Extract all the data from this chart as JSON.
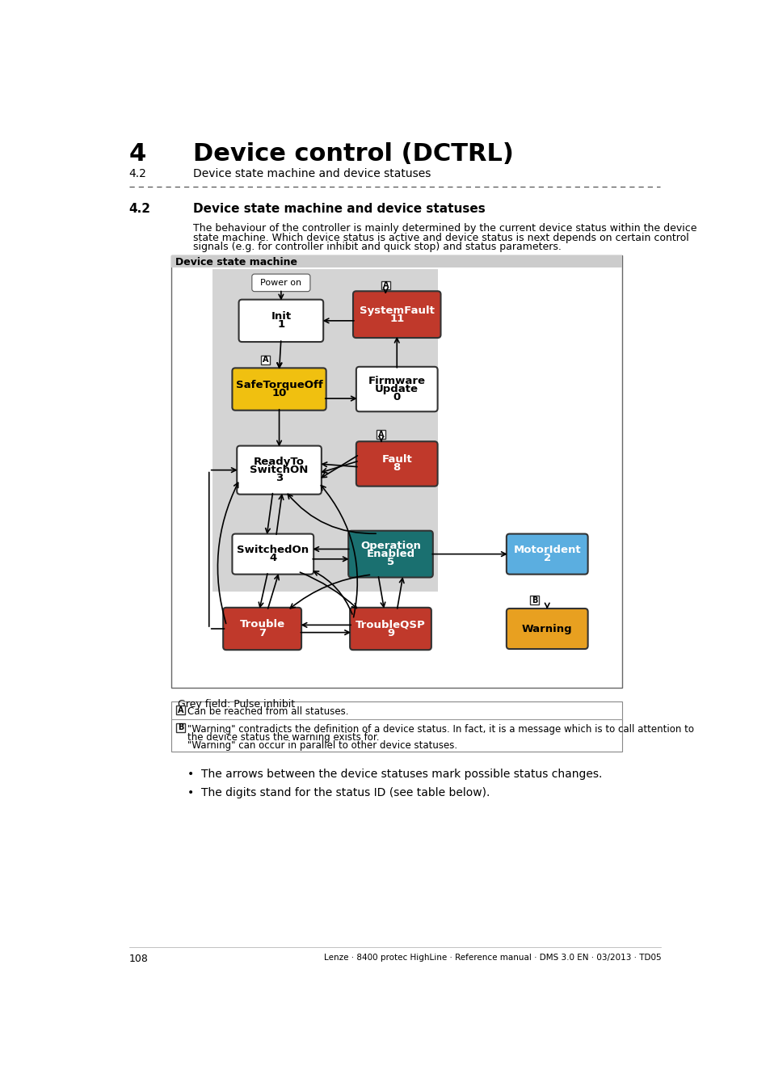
{
  "page_title": "4",
  "page_subtitle": "Device control (DCTRL)",
  "section_num": "4.2",
  "section_title_small": "Device state machine and device statuses",
  "section_heading": "4.2",
  "section_heading_text": "Device state machine and device statuses",
  "body_text_line1": "The behaviour of the controller is mainly determined by the current device status within the device",
  "body_text_line2": "state machine. Which device status is active and device status is next depends on certain control",
  "body_text_line3": "signals (e.g. for controller inhibit and quick stop) and status parameters.",
  "diagram_title": "Device state machine",
  "grey_label": "Grey field: Pulse inhibit",
  "note_a": "Can be reached from all statuses.",
  "note_b1": "\"Warning\" contradicts the definition of a device status. In fact, it is a message which is to call attention to",
  "note_b2": "the device status the warning exists for.",
  "note_b3": "\"Warning\" can occur in parallel to other device statuses.",
  "bullet1": "The arrows between the device statuses mark possible status changes.",
  "bullet2": "The digits stand for the status ID (see table below).",
  "footer": "108",
  "footer_right": "Lenze · 8400 protec HighLine · Reference manual · DMS 3.0 EN · 03/2013 · TD05",
  "c_white": "#ffffff",
  "c_red": "#c0392b",
  "c_yellow": "#f0c010",
  "c_teal": "#1a7070",
  "c_blue": "#5baee0",
  "c_orange": "#e8a020",
  "c_grey_bg": "#d4d4d4",
  "c_header_bg": "#cccccc",
  "c_black": "#000000",
  "c_border": "#444444"
}
